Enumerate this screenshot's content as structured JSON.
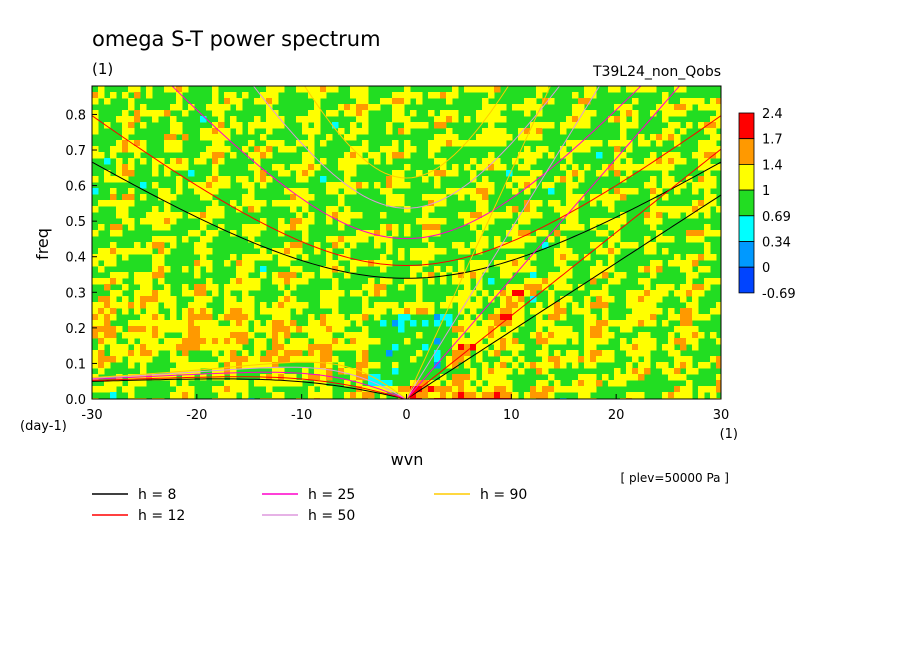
{
  "chart_data": {
    "type": "heatmap",
    "title": "omega S-T power spectrum",
    "unit_label": "(1)",
    "run_label": "T39L24_non_Qobs",
    "xlabel": "wvn",
    "ylabel": "freq",
    "y_unit": "(day-1)",
    "x_unit": "(1)",
    "level_note": "[ plev=50000 Pa ]",
    "xlim": [
      -30,
      30
    ],
    "ylim": [
      0,
      0.88
    ],
    "x_ticks": [
      "-30",
      "-20",
      "-10",
      "0",
      "10",
      "20",
      "30"
    ],
    "x_tick_values": [
      -30,
      -20,
      -10,
      0,
      10,
      20,
      30
    ],
    "y_ticks": [
      "0.0",
      "0.1",
      "0.2",
      "0.3",
      "0.4",
      "0.5",
      "0.6",
      "0.7",
      "0.8"
    ],
    "y_tick_values": [
      0,
      0.1,
      0.2,
      0.3,
      0.4,
      0.5,
      0.6,
      0.7,
      0.8
    ],
    "colorbar": {
      "labels": [
        "2.4",
        "1.7",
        "1.4",
        "1",
        "0.69",
        "0.34",
        "0",
        "-0.69"
      ],
      "colors": [
        "#ff0000",
        "#ff9900",
        "#ffff00",
        "#22dd22",
        "#00ffff",
        "#0099ff",
        "#0044ff"
      ]
    },
    "dispersion_curves": [
      {
        "name": "h =  8",
        "h": 8,
        "color": "#000000"
      },
      {
        "name": "h = 12",
        "h": 12,
        "color": "#ff0000"
      },
      {
        "name": "h = 25",
        "h": 25,
        "color": "#ff00cc"
      },
      {
        "name": "h = 50",
        "h": 50,
        "color": "#dd99dd"
      },
      {
        "name": "h = 90",
        "h": 90,
        "color": "#ffcc00"
      }
    ],
    "grid": false,
    "legend_position": "bottom-left"
  }
}
